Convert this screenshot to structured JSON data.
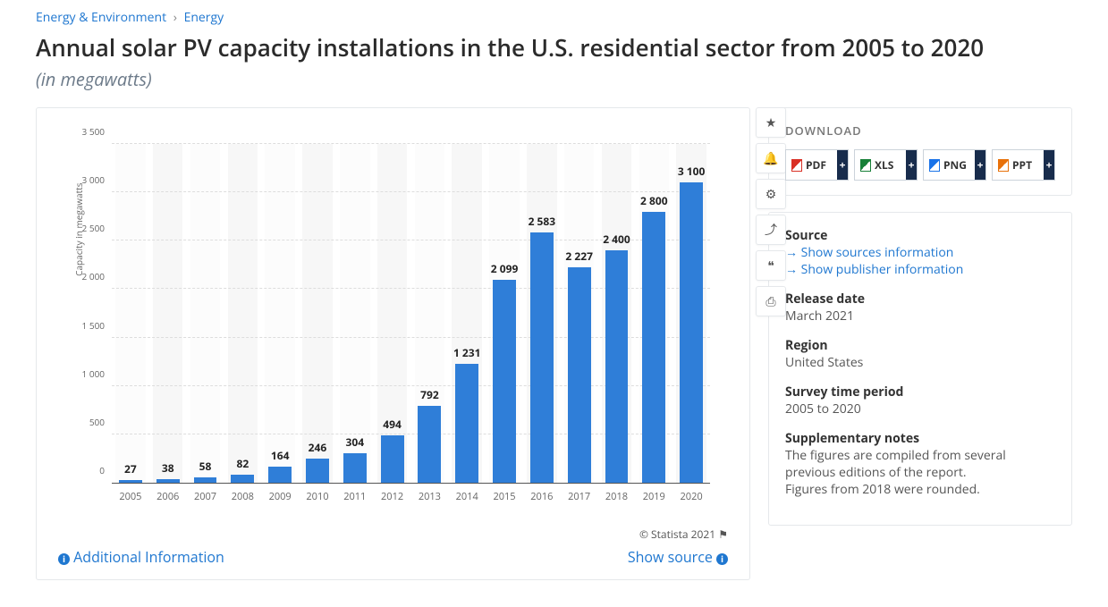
{
  "breadcrumb": {
    "level1": "Energy & Environment",
    "level2": "Energy"
  },
  "title": "Annual solar PV capacity installations in the U.S. residential sector from 2005 to 2020",
  "subtitle": "(in megawatts)",
  "chart": {
    "type": "bar",
    "ylabel": "Capacity in megawatts",
    "ylim": [
      0,
      3500
    ],
    "ytick_step": 500,
    "yticks": [
      "0",
      "500",
      "1 000",
      "1 500",
      "2 000",
      "2 500",
      "3 000",
      "3 500"
    ],
    "categories": [
      "2005",
      "2006",
      "2007",
      "2008",
      "2009",
      "2010",
      "2011",
      "2012",
      "2013",
      "2014",
      "2015",
      "2016",
      "2017",
      "2018",
      "2019",
      "2020"
    ],
    "values": [
      27,
      38,
      58,
      82,
      164,
      246,
      304,
      494,
      792,
      1231,
      2099,
      2583,
      2227,
      2400,
      2800,
      3100
    ],
    "value_labels": [
      "27",
      "38",
      "58",
      "82",
      "164",
      "246",
      "304",
      "494",
      "792",
      "1 231",
      "2 099",
      "2 583",
      "2 227",
      "2 400",
      "2 800",
      "3 100"
    ],
    "bar_color": "#2f7ed8",
    "grid_color": "#dddddd",
    "axis_color": "#555555",
    "value_label_fontsize": 12,
    "tick_fontsize": 11,
    "background_color": "#ffffff"
  },
  "credit": "© Statista 2021",
  "additional_info": "Additional Information",
  "show_source": "Show source",
  "toolbar_icons": [
    "star-icon",
    "bell-icon",
    "gear-icon",
    "share-icon",
    "quote-icon",
    "print-icon"
  ],
  "download": {
    "heading": "DOWNLOAD",
    "buttons": [
      {
        "label": "PDF",
        "color": "#d93025"
      },
      {
        "label": "XLS",
        "color": "#188038"
      },
      {
        "label": "PNG",
        "color": "#1a73e8"
      },
      {
        "label": "PPT",
        "color": "#e8710a"
      }
    ]
  },
  "source_panel": {
    "source_label": "Source",
    "show_sources": "Show sources information",
    "show_publisher": "Show publisher information",
    "release_label": "Release date",
    "release_value": "March 2021",
    "region_label": "Region",
    "region_value": "United States",
    "period_label": "Survey time period",
    "period_value": "2005 to 2020",
    "notes_label": "Supplementary notes",
    "notes_value1": "The figures are compiled from several previous editions of the report.",
    "notes_value2": "Figures from 2018 were rounded."
  }
}
